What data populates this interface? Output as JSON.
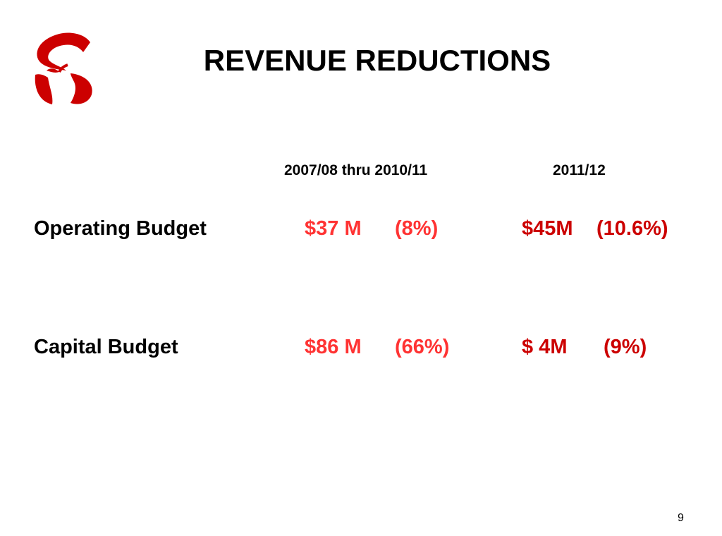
{
  "slide": {
    "title": "REVENUE REDUCTIONS",
    "logo": {
      "name": "school-district-s-apple-logo",
      "color": "#cc0000"
    },
    "columns": [
      "2007/08 thru 2010/11",
      "2011/12"
    ],
    "rows": [
      {
        "label": "Operating Budget",
        "period1_amount": "$37 M",
        "period1_percent": "(8%)",
        "period2_amount": "$45M",
        "period2_percent": "(10.6%)"
      },
      {
        "label": "Capital Budget",
        "period1_amount": "$86 M",
        "period1_percent": "(66%)",
        "period2_amount": "$ 4M",
        "period2_percent": "(9%)"
      }
    ],
    "page_number": "9"
  },
  "colors": {
    "period1_text": "#ff3333",
    "period2_text": "#cc0000",
    "label_text": "#000000"
  }
}
